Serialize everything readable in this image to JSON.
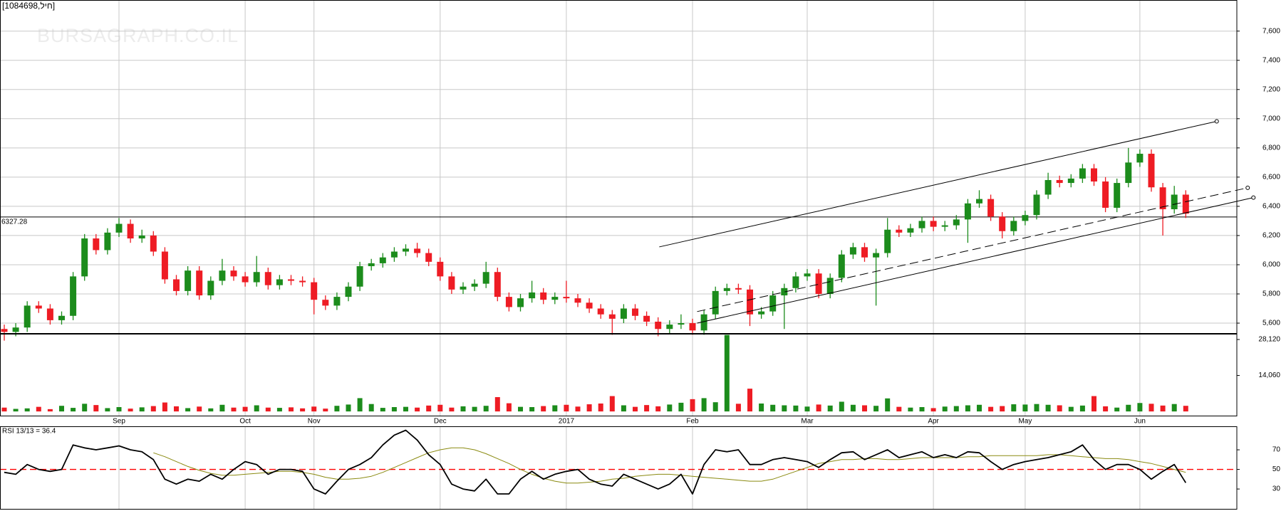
{
  "chart_data": {
    "type": "candlestick",
    "header": "[1084698,חיל]",
    "watermark": "BURSAGRAPH.CO.IL",
    "categories": [
      null,
      null,
      null,
      null,
      null,
      null,
      null,
      null,
      null,
      null,
      "Sep",
      null,
      null,
      null,
      null,
      null,
      null,
      null,
      null,
      null,
      null,
      "Oct",
      null,
      null,
      null,
      null,
      null,
      "Nov",
      null,
      null,
      null,
      null,
      null,
      null,
      null,
      null,
      null,
      null,
      "Dec",
      null,
      null,
      null,
      null,
      null,
      null,
      null,
      null,
      null,
      null,
      "2017",
      null,
      null,
      null,
      null,
      null,
      null,
      null,
      null,
      null,
      null,
      "Feb",
      null,
      null,
      null,
      null,
      null,
      null,
      null,
      null,
      null,
      "Mar",
      null,
      null,
      null,
      null,
      null,
      null,
      null,
      null,
      null,
      null,
      "Apr",
      null,
      null,
      null,
      null,
      null,
      null,
      null,
      "May",
      null,
      null,
      null,
      null,
      null,
      null,
      null,
      null,
      null,
      "Jun",
      null,
      null,
      null,
      null
    ],
    "grid": true,
    "price": {
      "open": [
        5560,
        5540,
        5570,
        5720,
        5700,
        5620,
        5650,
        5920,
        6180,
        6100,
        6220,
        6280,
        6180,
        6200,
        6090,
        5900,
        5820,
        5960,
        5790,
        5890,
        5960,
        5920,
        5880,
        5950,
        5860,
        5900,
        5890,
        5880,
        5760,
        5720,
        5780,
        5850,
        5990,
        6010,
        6050,
        6090,
        6110,
        6080,
        6020,
        5920,
        5830,
        5850,
        5870,
        5950,
        5780,
        5710,
        5770,
        5810,
        5760,
        5780,
        5770,
        5740,
        5700,
        5660,
        5630,
        5700,
        5650,
        5610,
        5560,
        5590,
        5600,
        5550,
        5660,
        5820,
        5840,
        5830,
        5660,
        5680,
        5790,
        5840,
        5920,
        5940,
        5800,
        5910,
        6070,
        6120,
        6050,
        6080,
        6240,
        6220,
        6250,
        6300,
        6260,
        6270,
        6310,
        6420,
        6450,
        6330,
        6230,
        6300,
        6340,
        6480,
        6580,
        6560,
        6590,
        6660,
        6570,
        6390,
        6560,
        6700,
        6760,
        6530,
        6380,
        6480
      ],
      "high": [
        5590,
        5600,
        5750,
        5750,
        5730,
        5680,
        5950,
        6210,
        6210,
        6250,
        6320,
        6310,
        6240,
        6230,
        6120,
        5930,
        5990,
        5990,
        5920,
        6040,
        5990,
        5950,
        6060,
        5980,
        5930,
        5930,
        5920,
        5910,
        5790,
        5810,
        5880,
        6020,
        6040,
        6080,
        6120,
        6140,
        6150,
        6110,
        6050,
        5950,
        5880,
        5900,
        6020,
        5980,
        5810,
        5800,
        5890,
        5840,
        5810,
        5890,
        5800,
        5770,
        5730,
        5690,
        5730,
        5730,
        5680,
        5640,
        5620,
        5660,
        5630,
        5690,
        5850,
        5870,
        5870,
        5860,
        5710,
        5820,
        5870,
        5950,
        5970,
        5970,
        5940,
        6100,
        6150,
        6150,
        6110,
        6320,
        6270,
        6280,
        6330,
        6330,
        6300,
        6340,
        6450,
        6510,
        6480,
        6360,
        6330,
        6370,
        6510,
        6630,
        6610,
        6620,
        6690,
        6690,
        6600,
        6590,
        6800,
        6790,
        6790,
        6560,
        6540,
        6510
      ],
      "low": [
        5480,
        5510,
        5540,
        5670,
        5590,
        5590,
        5620,
        5890,
        6070,
        6070,
        6190,
        6150,
        6150,
        6060,
        5870,
        5790,
        5790,
        5760,
        5760,
        5860,
        5890,
        5850,
        5850,
        5830,
        5830,
        5860,
        5850,
        5660,
        5690,
        5690,
        5750,
        5820,
        5960,
        5980,
        6020,
        6060,
        6050,
        5990,
        5890,
        5800,
        5800,
        5820,
        5840,
        5750,
        5680,
        5680,
        5740,
        5730,
        5730,
        5740,
        5710,
        5670,
        5630,
        5520,
        5600,
        5620,
        5580,
        5510,
        5530,
        5560,
        5520,
        5520,
        5630,
        5790,
        5800,
        5580,
        5630,
        5650,
        5560,
        5810,
        5890,
        5770,
        5770,
        5880,
        6040,
        6020,
        5720,
        6050,
        6190,
        6190,
        6220,
        6230,
        6230,
        6240,
        6150,
        6390,
        6300,
        6180,
        6200,
        6270,
        6310,
        6450,
        6530,
        6530,
        6560,
        6540,
        6360,
        6360,
        6530,
        6670,
        6500,
        6200,
        6350,
        6320
      ],
      "close": [
        5540,
        5570,
        5720,
        5700,
        5620,
        5650,
        5920,
        6180,
        6100,
        6220,
        6280,
        6180,
        6200,
        6090,
        5900,
        5820,
        5960,
        5790,
        5890,
        5960,
        5920,
        5880,
        5950,
        5860,
        5900,
        5890,
        5880,
        5760,
        5720,
        5780,
        5850,
        5990,
        6010,
        6050,
        6090,
        6110,
        6080,
        6020,
        5920,
        5830,
        5850,
        5870,
        5950,
        5780,
        5710,
        5770,
        5810,
        5760,
        5780,
        5770,
        5740,
        5700,
        5660,
        5630,
        5700,
        5650,
        5610,
        5560,
        5590,
        5600,
        5550,
        5660,
        5820,
        5840,
        5830,
        5660,
        5680,
        5790,
        5840,
        5920,
        5940,
        5800,
        5910,
        6070,
        6120,
        6050,
        6080,
        6240,
        6220,
        6250,
        6300,
        6260,
        6270,
        6310,
        6420,
        6450,
        6330,
        6230,
        6300,
        6340,
        6480,
        6580,
        6560,
        6590,
        6660,
        6570,
        6390,
        6560,
        6700,
        6760,
        6530,
        6380,
        6480,
        6350
      ],
      "up_color": "#1c8c1c",
      "down_color": "#ee1c24",
      "ylim": [
        5527,
        7813
      ],
      "yticks": [
        {
          "value": 5600,
          "label": "5,600"
        },
        {
          "value": 5800,
          "label": "5,800"
        },
        {
          "value": 6000,
          "label": "6,000"
        },
        {
          "value": 6200,
          "label": "6,200"
        },
        {
          "value": 6400,
          "label": "6,400"
        },
        {
          "value": 6600,
          "label": "6,600"
        },
        {
          "value": 6800,
          "label": "6,800"
        },
        {
          "value": 7000,
          "label": "7,000"
        },
        {
          "value": 7200,
          "label": "7,200"
        },
        {
          "value": 7400,
          "label": "7,400"
        },
        {
          "value": 7600,
          "label": "7,600"
        }
      ],
      "hline": 6327.28,
      "trendlines": [
        {
          "x": [
            57.1,
            105.7
          ],
          "y": [
            6122,
            6982
          ],
          "dashed": false
        },
        {
          "x": [
            60.4,
            108.9
          ],
          "y": [
            5600,
            6460
          ],
          "dashed": false
        },
        {
          "x": [
            60.4,
            108.4
          ],
          "y": [
            5679,
            6527
          ],
          "dashed": true
        }
      ]
    },
    "volume": {
      "values": [
        1500,
        1000,
        1200,
        1800,
        900,
        2200,
        1400,
        3000,
        2500,
        1300,
        1700,
        1100,
        1600,
        2100,
        3500,
        2000,
        1300,
        1900,
        1200,
        2600,
        1500,
        1800,
        2400,
        1500,
        1400,
        1600,
        1200,
        1900,
        1100,
        2200,
        2700,
        5200,
        2900,
        1400,
        1700,
        1800,
        1500,
        2300,
        2600,
        1500,
        2000,
        1800,
        2200,
        5600,
        3200,
        1800,
        1700,
        2100,
        2400,
        2600,
        1900,
        2800,
        3100,
        6000,
        2400,
        1800,
        2500,
        2000,
        2700,
        3400,
        4800,
        5200,
        3600,
        29900,
        3000,
        8900,
        3100,
        2600,
        2400,
        2300,
        1900,
        2700,
        2300,
        3800,
        2600,
        2400,
        2200,
        5100,
        1800,
        1500,
        1700,
        1300,
        1900,
        2100,
        2400,
        2600,
        1800,
        2100,
        2800,
        2700,
        2900,
        2600,
        2400,
        1800,
        2300,
        6000,
        2000,
        1500,
        2600,
        3300,
        3000,
        2300,
        2900,
        2200
      ],
      "ylim": [
        -1917,
        30357
      ],
      "yticks": [
        {
          "value": 14060,
          "label": "14,060"
        },
        {
          "value": 28120,
          "label": "28,120"
        }
      ]
    },
    "rsi": {
      "label": "RSI 13/13 = 36.4",
      "color": "#000000",
      "values": [
        47,
        45,
        55,
        50,
        48,
        50,
        75,
        72,
        70,
        72,
        74,
        70,
        68,
        60,
        40,
        35,
        40,
        38,
        45,
        40,
        50,
        58,
        55,
        45,
        50,
        50,
        48,
        30,
        25,
        38,
        50,
        55,
        62,
        75,
        85,
        90,
        80,
        65,
        55,
        35,
        30,
        28,
        40,
        25,
        25,
        40,
        48,
        40,
        45,
        48,
        50,
        40,
        35,
        33,
        45,
        40,
        35,
        30,
        35,
        45,
        25,
        55,
        70,
        68,
        70,
        55,
        55,
        60,
        62,
        60,
        58,
        52,
        60,
        67,
        68,
        60,
        65,
        70,
        62,
        65,
        68,
        62,
        65,
        62,
        68,
        67,
        58,
        50,
        55,
        58,
        60,
        62,
        65,
        68,
        75,
        60,
        50,
        55,
        55,
        50,
        40,
        48,
        55,
        36.4
      ],
      "signal": {
        "color": "#8a8a10",
        "values": [
          null,
          null,
          null,
          null,
          null,
          null,
          null,
          null,
          null,
          null,
          null,
          null,
          null,
          67,
          63,
          58,
          53,
          49,
          46,
          44,
          44,
          45,
          46,
          47,
          48,
          48,
          47,
          45,
          42,
          40,
          40,
          41,
          43,
          47,
          52,
          57,
          62,
          67,
          70,
          72,
          72,
          70,
          66,
          61,
          56,
          50,
          45,
          41,
          38,
          36,
          36,
          37,
          38,
          40,
          41,
          43,
          44,
          45,
          45,
          44,
          43,
          42,
          41,
          40,
          39,
          38,
          38,
          40,
          44,
          48,
          52,
          56,
          58,
          60,
          60,
          61,
          61,
          60,
          60,
          61,
          62,
          62,
          62,
          62,
          63,
          63,
          64,
          64,
          64,
          64,
          64,
          65,
          65,
          64,
          63,
          62,
          61,
          61,
          60,
          58,
          56,
          53,
          50,
          47
        ]
      },
      "ylim": [
        9,
        94
      ],
      "yticks": [
        30,
        50,
        70
      ],
      "ref_line": 50,
      "ref_color": "#ff0000"
    }
  }
}
